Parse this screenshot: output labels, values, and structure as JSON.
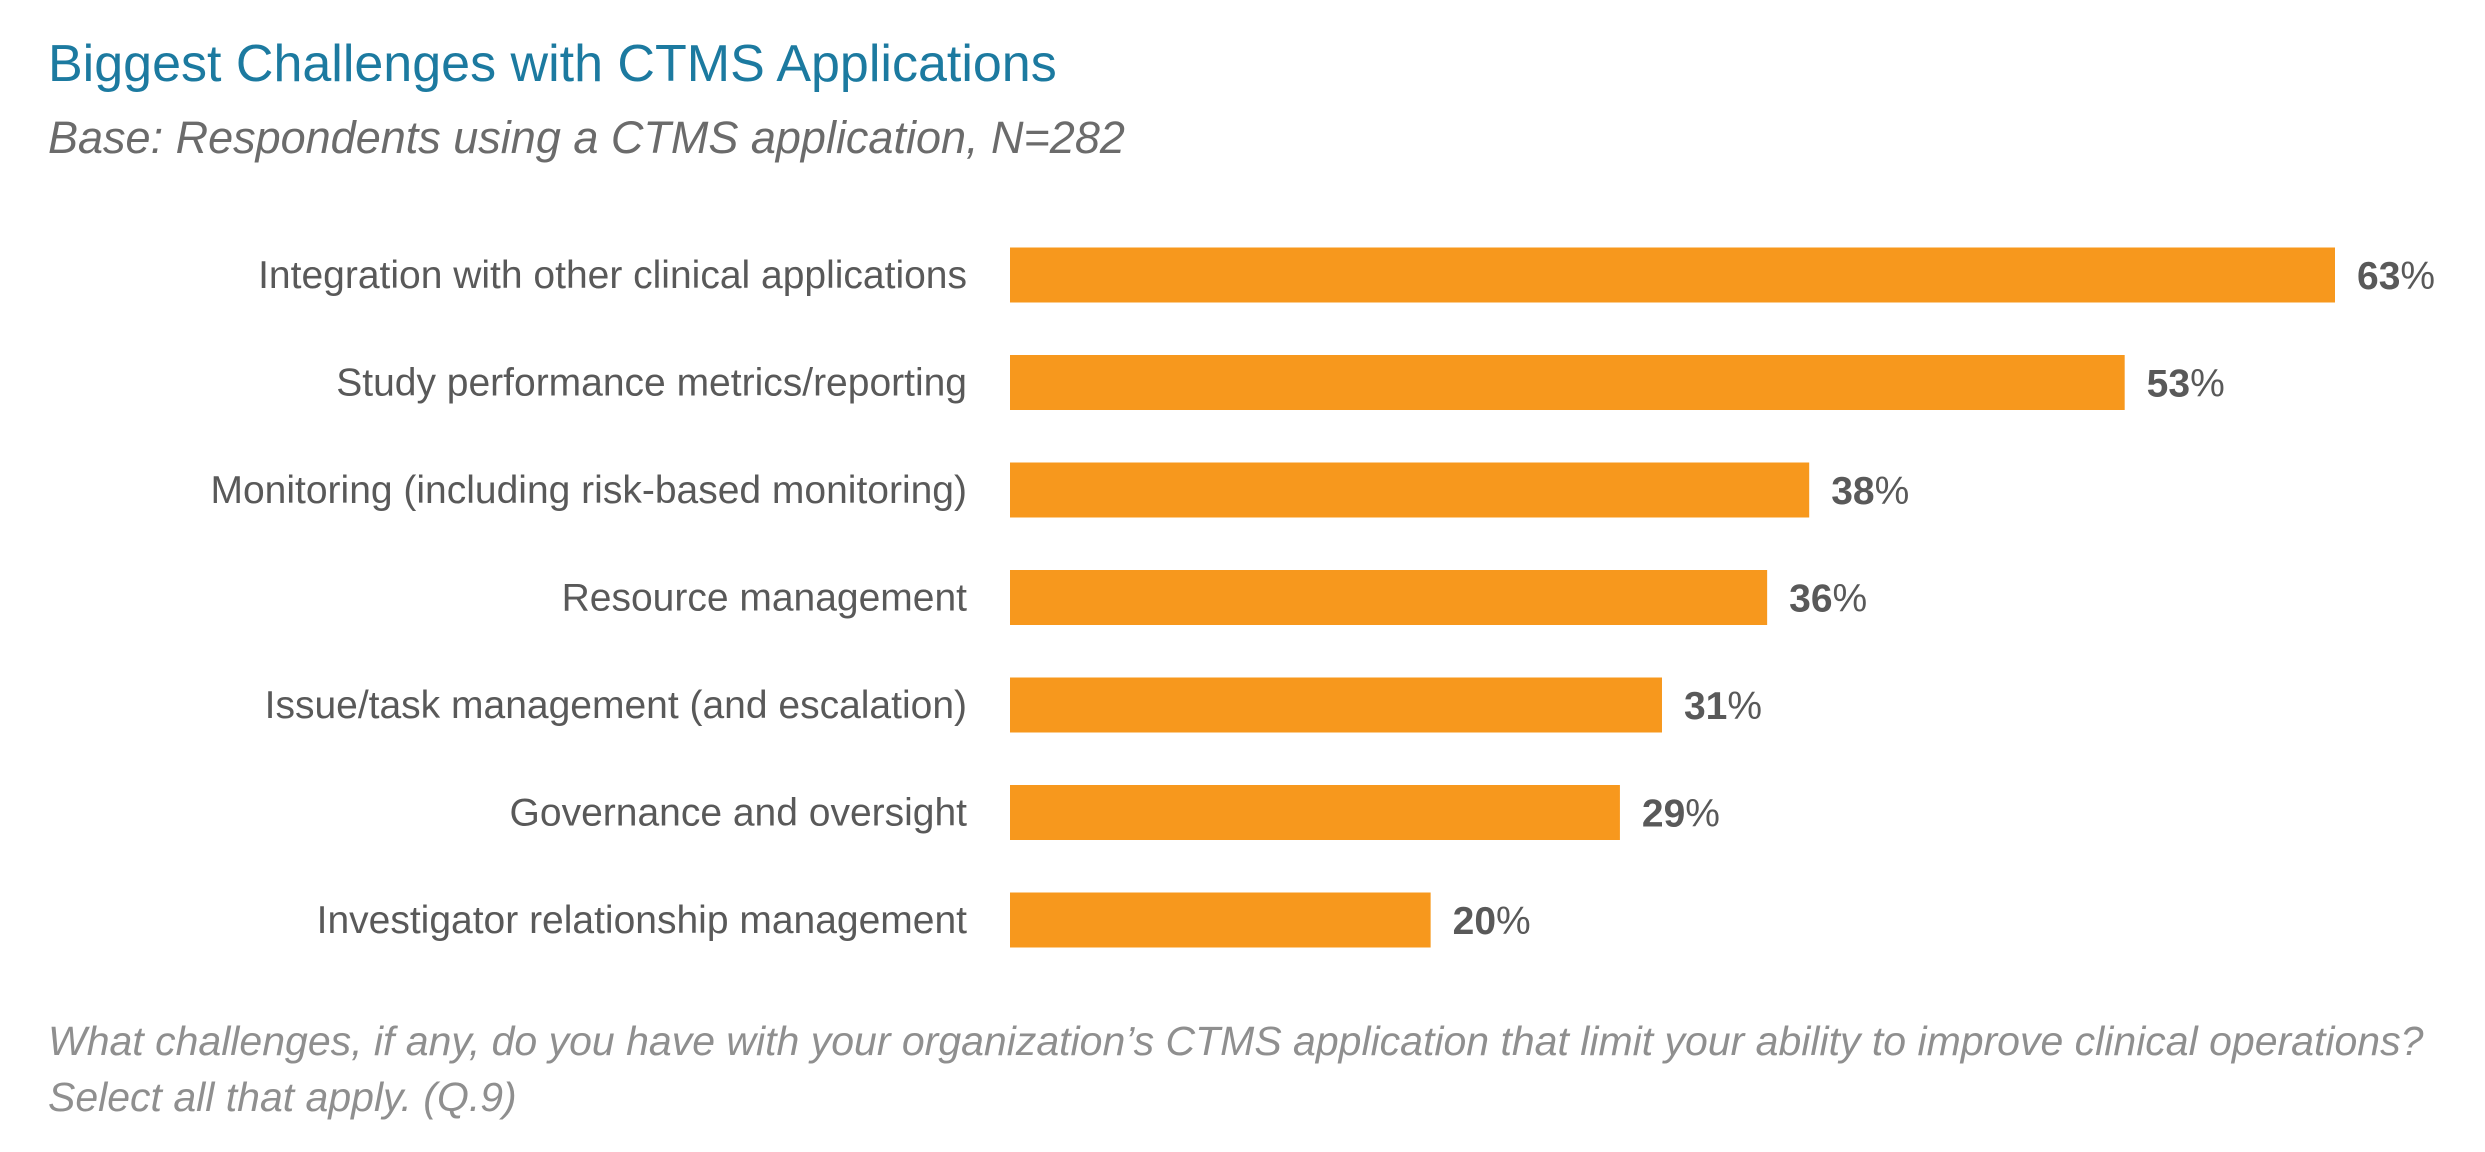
{
  "chart_data": {
    "type": "bar",
    "orientation": "horizontal",
    "title": "Biggest Challenges with CTMS Applications",
    "subtitle": "Base: Respondents using a CTMS application, N=282",
    "categories": [
      "Integration with other clinical applications",
      "Study performance metrics/reporting",
      "Monitoring (including risk-based monitoring)",
      "Resource management",
      "Issue/task management (and escalation)",
      "Governance and oversight",
      "Investigator relationship management"
    ],
    "values": [
      63,
      53,
      38,
      36,
      31,
      29,
      20
    ],
    "value_suffix": "%",
    "xlabel": "",
    "ylabel": "",
    "xlim": [
      0,
      63
    ],
    "grid": false,
    "bar_color": "#f7981d",
    "footer": [
      "What challenges, if any, do you have with your organization’s CTMS application that limit your ability to improve clinical operations?",
      "Select all that apply. (Q.9)"
    ]
  }
}
